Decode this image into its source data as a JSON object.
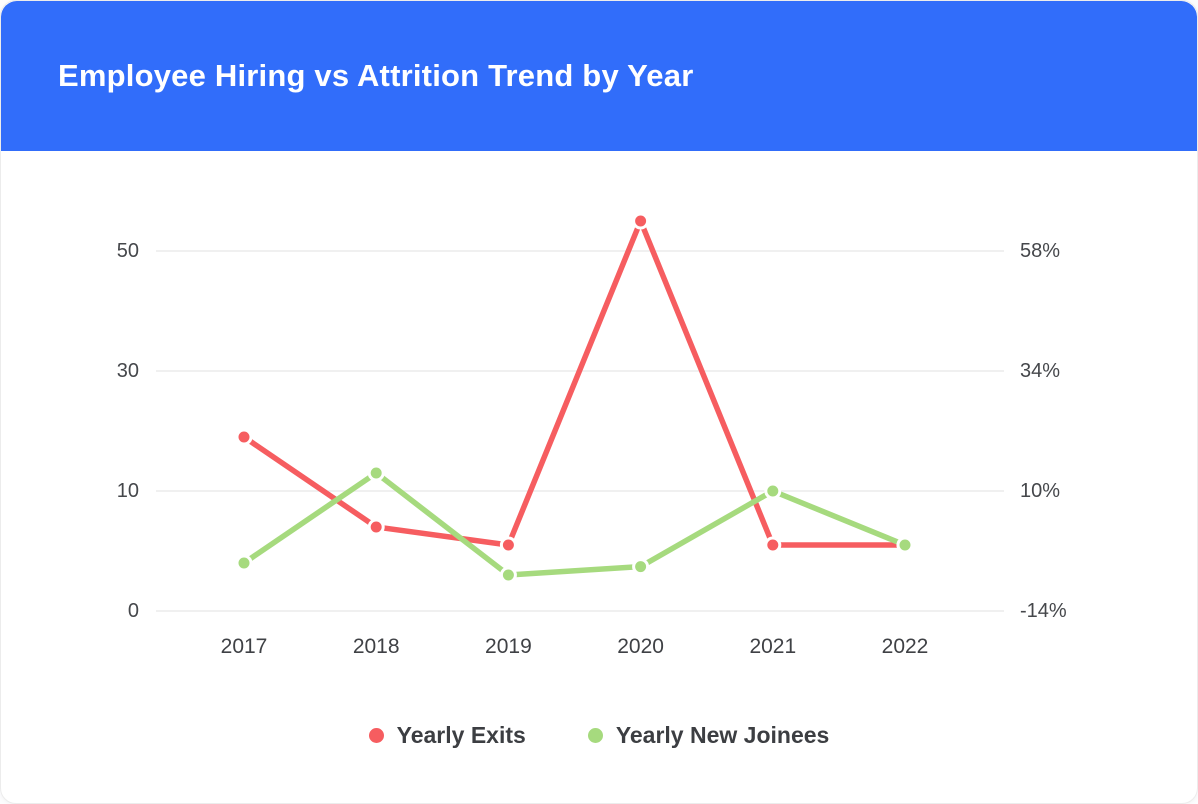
{
  "header": {
    "title": "Employee Hiring vs Attrition Trend by Year",
    "background": "#316dfa",
    "text_color": "#ffffff"
  },
  "chart_data": {
    "type": "line",
    "title": "Employee Hiring vs Attrition Trend by Year",
    "categories": [
      "2017",
      "2018",
      "2019",
      "2020",
      "2021",
      "2022"
    ],
    "series": [
      {
        "name": "Yearly Exits",
        "color": "#f65d60",
        "values": [
          19,
          7,
          5.5,
          55,
          5.5,
          5.5
        ]
      },
      {
        "name": "Yearly New Joinees",
        "color": "#a6da7e",
        "values": [
          4,
          13,
          3,
          3.7,
          10,
          5.5
        ]
      }
    ],
    "left_axis": {
      "ticks": [
        0,
        10,
        30,
        50
      ],
      "tick_labels": [
        "0",
        "10",
        "30",
        "50"
      ]
    },
    "right_axis": {
      "tick_labels": [
        "-14%",
        "10%",
        "34%",
        "58%"
      ]
    },
    "grid": true,
    "legend_position": "bottom",
    "gridline_color": "#ebebeb",
    "axis_text_color": "#45474b",
    "x_text_color": "#3f4145"
  }
}
